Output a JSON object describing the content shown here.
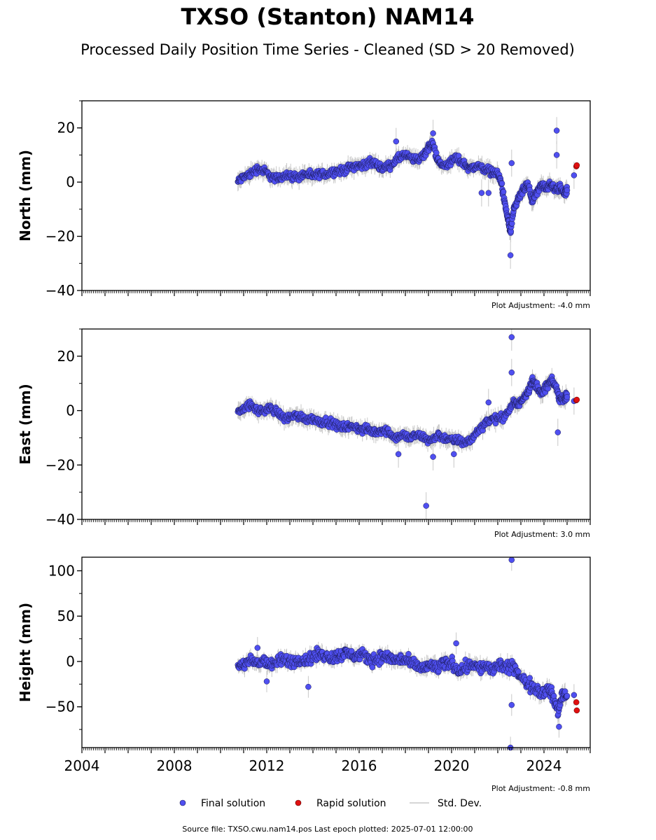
{
  "title": "TXSO (Stanton) NAM14",
  "subtitle": "Processed Daily Position Time Series - Cleaned (SD > 20 Removed)",
  "colors": {
    "final": "#4f4ff0",
    "final_edge": "#1a1a55",
    "rapid": "#e01010",
    "stddev": "#c8c8c8",
    "axis": "#000000"
  },
  "legend": [
    {
      "key": "final",
      "label": "Final solution"
    },
    {
      "key": "rapid",
      "label": "Rapid solution"
    },
    {
      "key": "stddev",
      "label": "Std. Dev."
    }
  ],
  "footer": "Source file: TXSO.cwu.nam14.pos  Last epoch plotted: 2025-07-01 12:00:00",
  "chart_data": [
    {
      "type": "scatter",
      "ylabel": "North (mm)",
      "ylim": [
        -40,
        30
      ],
      "yticks": [
        -40,
        -20,
        0,
        20
      ],
      "xlim": [
        2004,
        2026
      ],
      "xticks": [
        "2004",
        "2008",
        "2012",
        "2016",
        "2020",
        "2024"
      ],
      "show_xtick_labels": false,
      "adjustment": "Plot Adjustment: -4.0 mm",
      "series": [
        {
          "key": "final",
          "points": [
            [
              2010.75,
              0
            ],
            [
              2011.0,
              2
            ],
            [
              2011.3,
              3
            ],
            [
              2011.6,
              5
            ],
            [
              2011.9,
              4
            ],
            [
              2012.2,
              2
            ],
            [
              2012.5,
              1
            ],
            [
              2012.8,
              3
            ],
            [
              2013.1,
              2
            ],
            [
              2013.4,
              2
            ],
            [
              2013.7,
              3
            ],
            [
              2014.0,
              2
            ],
            [
              2014.3,
              3
            ],
            [
              2014.6,
              3
            ],
            [
              2014.9,
              4
            ],
            [
              2015.2,
              4
            ],
            [
              2015.5,
              5
            ],
            [
              2015.8,
              6
            ],
            [
              2016.1,
              6
            ],
            [
              2016.4,
              7
            ],
            [
              2016.7,
              7
            ],
            [
              2017.0,
              5
            ],
            [
              2017.3,
              6
            ],
            [
              2017.6,
              8
            ],
            [
              2017.9,
              10
            ],
            [
              2018.2,
              9
            ],
            [
              2018.5,
              8
            ],
            [
              2018.8,
              10
            ],
            [
              2019.0,
              13
            ],
            [
              2019.2,
              14
            ],
            [
              2019.4,
              8
            ],
            [
              2019.6,
              6
            ],
            [
              2019.9,
              7
            ],
            [
              2020.2,
              9
            ],
            [
              2020.5,
              7
            ],
            [
              2020.8,
              5
            ],
            [
              2021.1,
              6
            ],
            [
              2021.4,
              5
            ],
            [
              2021.7,
              4
            ],
            [
              2022.0,
              3
            ],
            [
              2022.15,
              0
            ],
            [
              2022.3,
              -8
            ],
            [
              2022.45,
              -14
            ],
            [
              2022.55,
              -19
            ],
            [
              2022.7,
              -10
            ],
            [
              2022.9,
              -6
            ],
            [
              2023.1,
              -3
            ],
            [
              2023.3,
              -1
            ],
            [
              2023.5,
              -7
            ],
            [
              2023.7,
              -4
            ],
            [
              2023.9,
              -1
            ],
            [
              2024.1,
              -2
            ],
            [
              2024.3,
              -1
            ],
            [
              2024.5,
              -3
            ],
            [
              2024.7,
              -2
            ],
            [
              2024.9,
              -4
            ],
            [
              2025.0,
              -3
            ]
          ],
          "outliers": [
            [
              2017.6,
              15
            ],
            [
              2019.2,
              18
            ],
            [
              2021.3,
              -4
            ],
            [
              2021.6,
              -4
            ],
            [
              2022.6,
              7
            ],
            [
              2022.55,
              -27
            ],
            [
              2024.55,
              19
            ],
            [
              2024.55,
              10
            ],
            [
              2025.3,
              2.5
            ]
          ]
        },
        {
          "key": "rapid",
          "points": [
            [
              2025.4,
              5.8
            ],
            [
              2025.42,
              6.2
            ]
          ]
        }
      ]
    },
    {
      "type": "scatter",
      "ylabel": "East (mm)",
      "ylim": [
        -40,
        30
      ],
      "yticks": [
        -40,
        -20,
        0,
        20
      ],
      "xlim": [
        2004,
        2026
      ],
      "xticks": [
        "2004",
        "2008",
        "2012",
        "2016",
        "2020",
        "2024"
      ],
      "show_xtick_labels": false,
      "adjustment": "Plot Adjustment: 3.0 mm",
      "series": [
        {
          "key": "final",
          "points": [
            [
              2010.75,
              0
            ],
            [
              2011.0,
              1
            ],
            [
              2011.3,
              2
            ],
            [
              2011.6,
              0
            ],
            [
              2011.9,
              0
            ],
            [
              2012.2,
              1
            ],
            [
              2012.5,
              -1
            ],
            [
              2012.8,
              -3
            ],
            [
              2013.1,
              -2
            ],
            [
              2013.4,
              -2
            ],
            [
              2013.7,
              -3
            ],
            [
              2014.0,
              -3
            ],
            [
              2014.3,
              -4
            ],
            [
              2014.6,
              -4
            ],
            [
              2014.9,
              -5
            ],
            [
              2015.2,
              -6
            ],
            [
              2015.5,
              -6
            ],
            [
              2015.8,
              -6
            ],
            [
              2016.1,
              -7
            ],
            [
              2016.4,
              -7
            ],
            [
              2016.7,
              -8
            ],
            [
              2017.0,
              -7
            ],
            [
              2017.3,
              -8
            ],
            [
              2017.6,
              -10
            ],
            [
              2017.9,
              -9
            ],
            [
              2018.2,
              -10
            ],
            [
              2018.5,
              -9
            ],
            [
              2018.8,
              -10
            ],
            [
              2019.1,
              -11
            ],
            [
              2019.4,
              -9
            ],
            [
              2019.7,
              -10
            ],
            [
              2020.0,
              -11
            ],
            [
              2020.3,
              -11
            ],
            [
              2020.6,
              -12
            ],
            [
              2020.9,
              -10
            ],
            [
              2021.2,
              -7
            ],
            [
              2021.5,
              -4
            ],
            [
              2021.8,
              -3
            ],
            [
              2022.1,
              -3
            ],
            [
              2022.4,
              -1
            ],
            [
              2022.7,
              3
            ],
            [
              2022.9,
              2
            ],
            [
              2023.1,
              5
            ],
            [
              2023.3,
              7
            ],
            [
              2023.5,
              11
            ],
            [
              2023.7,
              9
            ],
            [
              2023.9,
              6
            ],
            [
              2024.1,
              9
            ],
            [
              2024.3,
              11
            ],
            [
              2024.5,
              9
            ],
            [
              2024.7,
              4
            ],
            [
              2024.9,
              5
            ],
            [
              2025.0,
              5
            ]
          ],
          "outliers": [
            [
              2017.7,
              -16
            ],
            [
              2018.9,
              -35
            ],
            [
              2019.2,
              -17
            ],
            [
              2020.1,
              -16
            ],
            [
              2021.6,
              3
            ],
            [
              2022.6,
              27
            ],
            [
              2022.6,
              14
            ],
            [
              2024.6,
              -8
            ],
            [
              2025.3,
              3.5
            ]
          ]
        },
        {
          "key": "rapid",
          "points": [
            [
              2025.4,
              3.8
            ],
            [
              2025.42,
              4.0
            ]
          ]
        }
      ]
    },
    {
      "type": "scatter",
      "ylabel": "Height (mm)",
      "ylim": [
        -95,
        115
      ],
      "yticks": [
        -50,
        0,
        50,
        100
      ],
      "xlim": [
        2004,
        2026
      ],
      "xticks": [
        "2004",
        "2008",
        "2012",
        "2016",
        "2020",
        "2024"
      ],
      "show_xtick_labels": true,
      "adjustment": "Plot Adjustment: -0.8 mm",
      "series": [
        {
          "key": "final",
          "points": [
            [
              2010.75,
              -5
            ],
            [
              2011.0,
              -3
            ],
            [
              2011.3,
              0
            ],
            [
              2011.6,
              -2
            ],
            [
              2011.9,
              2
            ],
            [
              2012.2,
              -5
            ],
            [
              2012.5,
              0
            ],
            [
              2012.8,
              2
            ],
            [
              2013.1,
              -1
            ],
            [
              2013.4,
              3
            ],
            [
              2013.7,
              1
            ],
            [
              2014.0,
              5
            ],
            [
              2014.3,
              8
            ],
            [
              2014.6,
              6
            ],
            [
              2014.9,
              4
            ],
            [
              2015.2,
              8
            ],
            [
              2015.5,
              9
            ],
            [
              2015.8,
              6
            ],
            [
              2016.1,
              7
            ],
            [
              2016.4,
              3
            ],
            [
              2016.7,
              2
            ],
            [
              2017.0,
              6
            ],
            [
              2017.3,
              4
            ],
            [
              2017.6,
              1
            ],
            [
              2017.9,
              3
            ],
            [
              2018.2,
              -2
            ],
            [
              2018.5,
              -5
            ],
            [
              2018.8,
              -8
            ],
            [
              2019.1,
              -4
            ],
            [
              2019.4,
              -7
            ],
            [
              2019.7,
              -3
            ],
            [
              2020.0,
              -1
            ],
            [
              2020.3,
              -10
            ],
            [
              2020.6,
              -6
            ],
            [
              2020.9,
              -2
            ],
            [
              2021.2,
              -8
            ],
            [
              2021.5,
              -5
            ],
            [
              2021.8,
              -10
            ],
            [
              2022.1,
              -3
            ],
            [
              2022.4,
              -8
            ],
            [
              2022.7,
              -5
            ],
            [
              2023.0,
              -18
            ],
            [
              2023.3,
              -25
            ],
            [
              2023.6,
              -28
            ],
            [
              2023.9,
              -35
            ],
            [
              2024.2,
              -30
            ],
            [
              2024.4,
              -40
            ],
            [
              2024.6,
              -55
            ],
            [
              2024.8,
              -35
            ],
            [
              2025.0,
              -38
            ]
          ],
          "outliers": [
            [
              2011.6,
              15
            ],
            [
              2012.0,
              -22
            ],
            [
              2013.8,
              -28
            ],
            [
              2020.2,
              20
            ],
            [
              2022.6,
              -48
            ],
            [
              2022.6,
              112
            ],
            [
              2022.55,
              -95
            ],
            [
              2024.65,
              -72
            ],
            [
              2025.3,
              -37
            ]
          ]
        },
        {
          "key": "rapid",
          "points": [
            [
              2025.4,
              -45
            ],
            [
              2025.42,
              -54
            ]
          ]
        }
      ]
    }
  ]
}
